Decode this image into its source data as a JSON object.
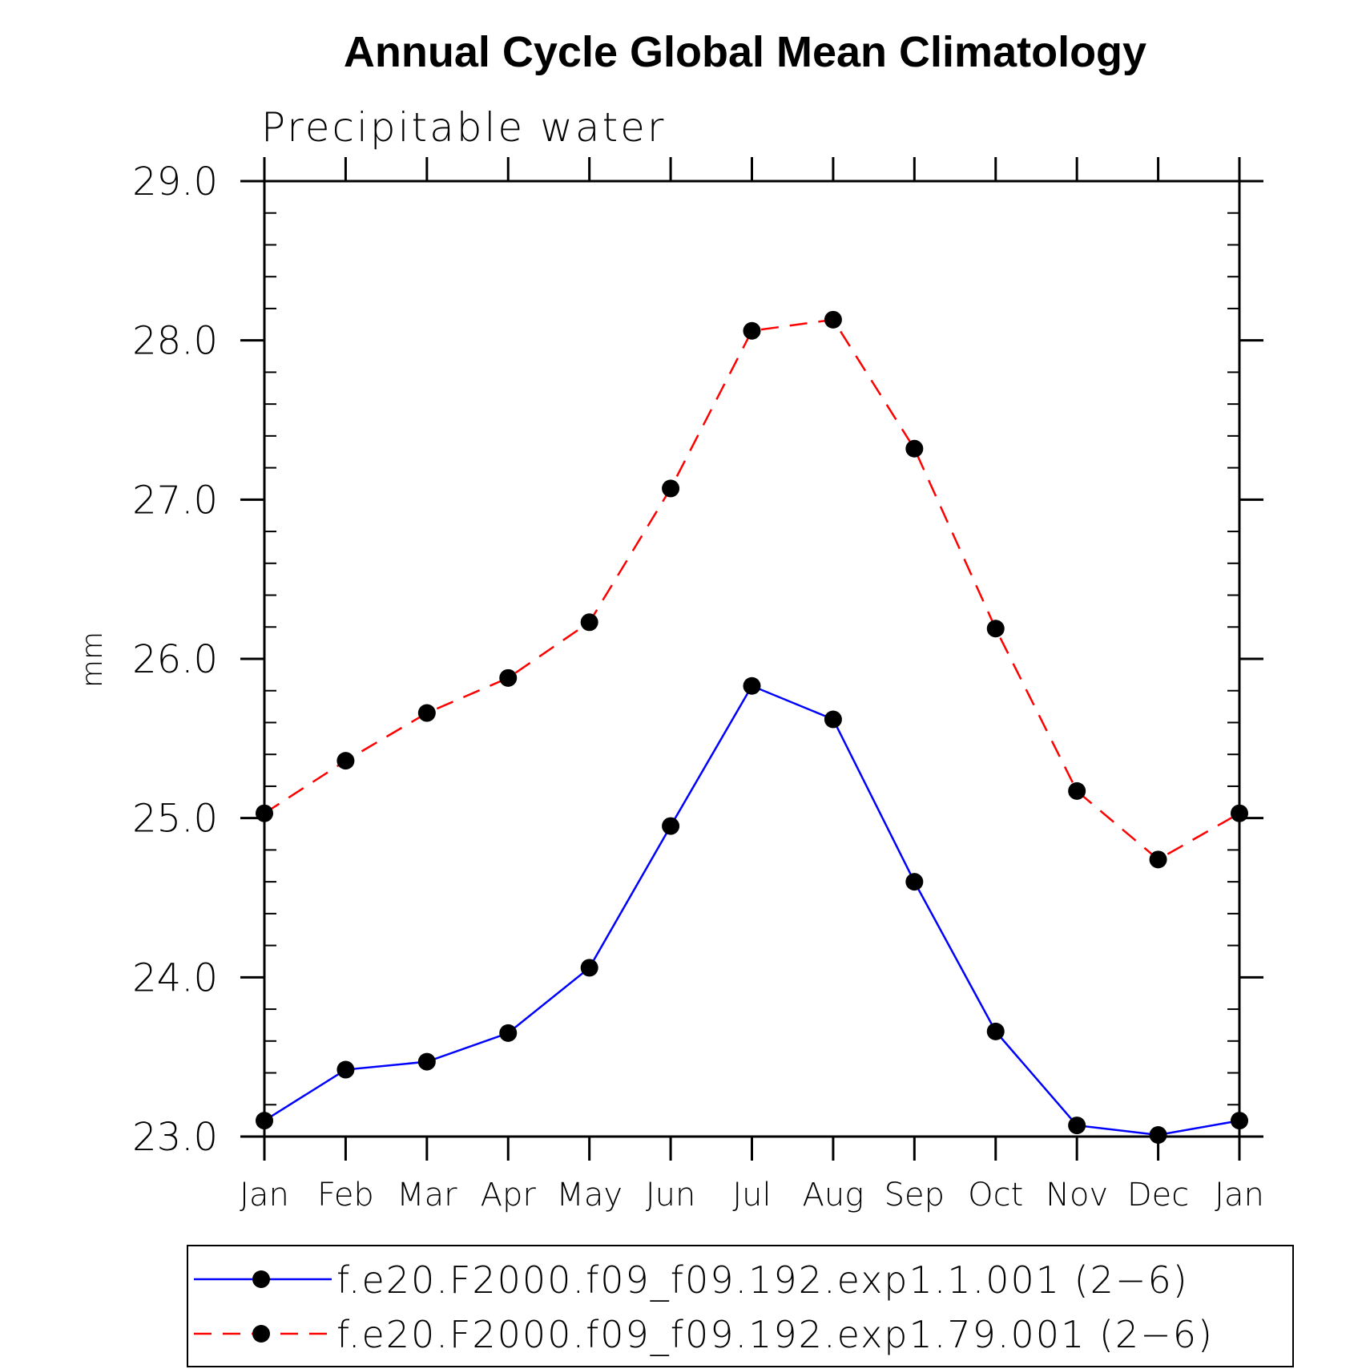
{
  "chart_data": {
    "type": "line",
    "title": "Annual Cycle Global Mean Climatology",
    "subtitle": "Precipitable water",
    "xlabel": "",
    "ylabel": "mm",
    "categories": [
      "Jan",
      "Feb",
      "Mar",
      "Apr",
      "May",
      "Jun",
      "Jul",
      "Aug",
      "Sep",
      "Oct",
      "Nov",
      "Dec",
      "Jan"
    ],
    "ylim": [
      23.0,
      29.0
    ],
    "yticks": [
      "23.0",
      "24.0",
      "25.0",
      "26.0",
      "27.0",
      "28.0",
      "29.0"
    ],
    "grid": false,
    "legend_position": "bottom",
    "series": [
      {
        "name": "f.e20.F2000.f09_f09.192.exp1.1.001 (2−6)",
        "color": "#0000ff",
        "line_style": "solid",
        "marker": "filled-circle",
        "values": [
          23.1,
          23.42,
          23.47,
          23.65,
          24.06,
          24.95,
          25.83,
          25.62,
          24.6,
          23.66,
          23.07,
          23.01,
          23.1
        ]
      },
      {
        "name": "f.e20.F2000.f09_f09.192.exp1.79.001 (2−6)",
        "color": "#ff0000",
        "line_style": "dashed",
        "marker": "filled-circle",
        "values": [
          25.03,
          25.36,
          25.66,
          25.88,
          26.23,
          27.07,
          28.06,
          28.13,
          27.32,
          26.19,
          25.17,
          24.74,
          25.03
        ]
      }
    ]
  }
}
